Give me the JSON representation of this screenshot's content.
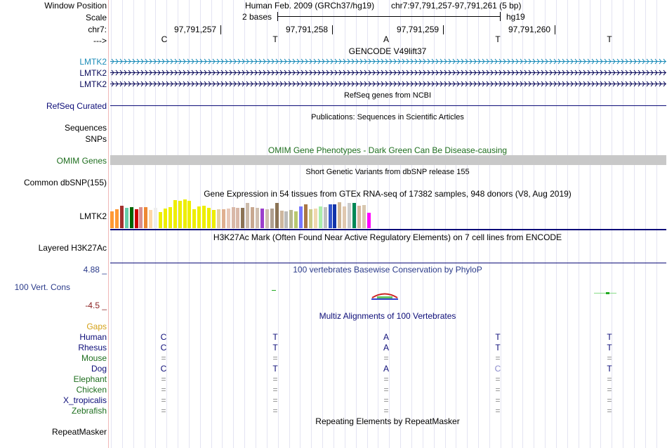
{
  "header": {
    "window_position_label": "Window Position",
    "scale_label": "Scale",
    "chrom_label": "chr7:",
    "strand_label": "--->",
    "assembly_text": "Human Feb. 2009 (GRCh37/hg19)",
    "position_text": "chr7:97,791,257-97,791,261 (5 bp)",
    "scale_text": "2 bases",
    "scale_db": "hg19",
    "coords": [
      "97,791,257",
      "97,791,258",
      "97,791,259",
      "97,791,260"
    ],
    "bases": [
      "C",
      "T",
      "A",
      "T",
      "T"
    ]
  },
  "gencode": {
    "title": "GENCODE V49lift37",
    "genes": [
      "LMTK2",
      "LMTK2",
      "LMTK2"
    ],
    "colors": [
      "#1c8cb8",
      "#0a0a5a",
      "#0a0a5a"
    ]
  },
  "refseq": {
    "title": "RefSeq genes from NCBI",
    "label": "RefSeq Curated",
    "color": "#0c0c78"
  },
  "publications": {
    "title": "Publications: Sequences in Scientific Articles",
    "labels": [
      "Sequences",
      "SNPs"
    ]
  },
  "omim": {
    "title": "OMIM Gene Phenotypes - Dark Green Can Be Disease-causing",
    "label": "OMIM Genes",
    "color": "#1e6e1e"
  },
  "dbsnp": {
    "title": "Short Genetic Variants from dbSNP release 155",
    "label": "Common dbSNP(155)"
  },
  "gtex": {
    "title": "Gene Expression in 54 tissues from GTEx RNA-seq of 17382 samples, 948 donors (V8, Aug 2019)",
    "label": "LMTK2",
    "values": [
      24,
      27,
      32,
      29,
      30,
      27,
      30,
      30,
      26,
      29,
      23,
      28,
      30,
      40,
      39,
      41,
      39,
      27,
      31,
      32,
      29,
      26,
      27,
      27,
      28,
      30,
      29,
      29,
      36,
      30,
      29,
      28,
      27,
      28,
      36,
      25,
      24,
      26,
      24,
      31,
      34,
      27,
      28,
      31,
      30,
      34,
      34,
      37,
      31,
      36,
      36,
      32,
      33,
      22
    ],
    "colors": [
      "#ff9933",
      "#ff9933",
      "#a3302e",
      "#66cdaa",
      "#006400",
      "#cc0000",
      "#d99090",
      "#ee8833",
      "#ffd7a8",
      "#eeeeee",
      "#eeee00",
      "#eeee00",
      "#eeee00",
      "#eeee00",
      "#eeee00",
      "#eeee00",
      "#eeee00",
      "#eeee00",
      "#eeee00",
      "#eeee00",
      "#eeee00",
      "#eeee00",
      "#e4cfa4",
      "#e0b090",
      "#e8c8b8",
      "#d9b8a8",
      "#d9b8a8",
      "#8b7355",
      "#ccbbaa",
      "#c8a890",
      "#d0bfb0",
      "#9b3ecc",
      "#d0bfb0",
      "#b0a090",
      "#8b7355",
      "#cdb79e",
      "#bbbbbb",
      "#b8b890",
      "#b8c870",
      "#7777ff",
      "#aa7744",
      "#cccc88",
      "#f0d8b0",
      "#aaeeaa",
      "#c0c0c0",
      "#3355cc",
      "#1133aa",
      "#d0b898",
      "#e0c8b0",
      "#cccccc",
      "#008855",
      "#d8b8a0",
      "#d8c8b0",
      "#ff00ff"
    ]
  },
  "h3k27ac": {
    "title": "H3K27Ac Mark (Often Found Near Active Regulatory Elements) on 7 cell lines from ENCODE",
    "label": "Layered H3K27Ac"
  },
  "phylop": {
    "title": "100 vertebrates Basewise Conservation by PhyloP",
    "label": "100 Vert. Cons",
    "max_label": "4.88 _",
    "min_label": "-4.5 _",
    "title_color": "#2b3b8a",
    "max_color": "#2b3b8a",
    "min_color": "#8b2222"
  },
  "multiz": {
    "title": "Multiz Alignments of 100 Vertebrates",
    "gaps_label": "Gaps",
    "species": [
      {
        "name": "Human",
        "color": "#0c0c78",
        "bases": [
          "C",
          "T",
          "A",
          "T",
          "T"
        ]
      },
      {
        "name": "Rhesus",
        "color": "#0c0c78",
        "bases": [
          "C",
          "T",
          "A",
          "T",
          "T"
        ]
      },
      {
        "name": "Mouse",
        "color": "#1e6e1e",
        "bases": [
          "=",
          "=",
          "=",
          "=",
          "="
        ]
      },
      {
        "name": "Dog",
        "color": "#0c0c78",
        "bases": [
          "C",
          "T",
          "A",
          "C",
          "T"
        ]
      },
      {
        "name": "Elephant",
        "color": "#1e6e1e",
        "bases": [
          "=",
          "=",
          "=",
          "=",
          "="
        ]
      },
      {
        "name": "Chicken",
        "color": "#1e6e1e",
        "bases": [
          "=",
          "=",
          "=",
          "=",
          "="
        ]
      },
      {
        "name": "X_tropicalis",
        "color": "#0c0c78",
        "bases": [
          "=",
          "=",
          "=",
          "=",
          "="
        ]
      },
      {
        "name": "Zebrafish",
        "color": "#1e6e1e",
        "bases": [
          "=",
          "=",
          "=",
          "=",
          "="
        ]
      }
    ]
  },
  "repeatmasker": {
    "title": "Repeating Elements by RepeatMasker",
    "label": "RepeatMasker"
  }
}
